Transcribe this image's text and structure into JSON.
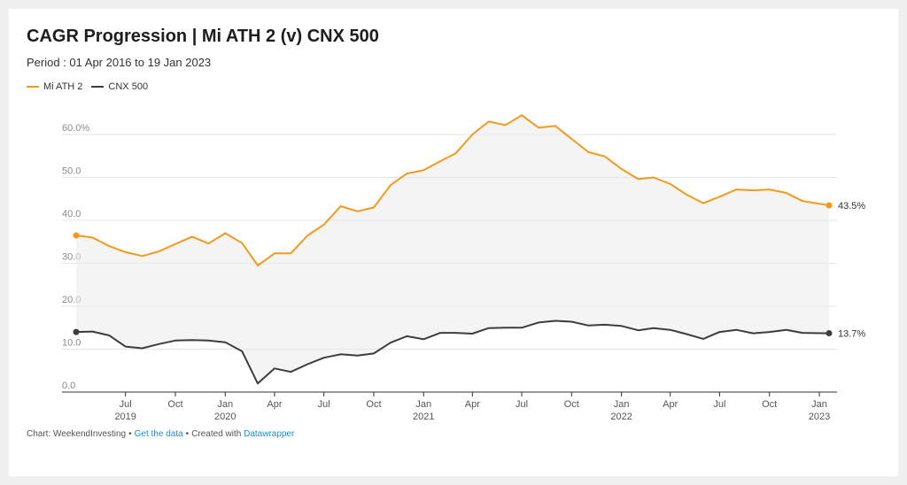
{
  "header": {
    "title": "CAGR Progression | Mi ATH 2 (v) CNX 500",
    "subtitle": "Period : 01 Apr 2016 to 19 Jan 2023"
  },
  "footer": {
    "source": "Chart: WeekendInvesting",
    "separator": "•",
    "get_data": "Get the data",
    "created_with": "Created with",
    "datawrapper": "Datawrapper"
  },
  "chart_data": {
    "type": "line",
    "title": "CAGR Progression | Mi ATH 2 (v) CNX 500",
    "subtitle": "Period : 01 Apr 2016 to 19 Jan 2023",
    "xlabel": "",
    "ylabel": "",
    "ylim": [
      0,
      60
    ],
    "grid": true,
    "legend_position": "top-left",
    "shaded_area_between_series": true,
    "y_ticks": [
      {
        "value": 0,
        "label": "0.0"
      },
      {
        "value": 10,
        "label": "10.0"
      },
      {
        "value": 20,
        "label": "20.0"
      },
      {
        "value": 30,
        "label": "30.0"
      },
      {
        "value": 40,
        "label": "40.0"
      },
      {
        "value": 50,
        "label": "50.0"
      },
      {
        "value": 60,
        "label": "60.0%"
      }
    ],
    "x_ticks": [
      {
        "x": "2019-07",
        "label": "Jul",
        "year": "2019"
      },
      {
        "x": "2019-10",
        "label": "Oct",
        "year": ""
      },
      {
        "x": "2020-01",
        "label": "Jan",
        "year": "2020"
      },
      {
        "x": "2020-04",
        "label": "Apr",
        "year": ""
      },
      {
        "x": "2020-07",
        "label": "Jul",
        "year": ""
      },
      {
        "x": "2020-10",
        "label": "Oct",
        "year": ""
      },
      {
        "x": "2021-01",
        "label": "Jan",
        "year": "2021"
      },
      {
        "x": "2021-04",
        "label": "Apr",
        "year": ""
      },
      {
        "x": "2021-07",
        "label": "Jul",
        "year": ""
      },
      {
        "x": "2021-10",
        "label": "Oct",
        "year": ""
      },
      {
        "x": "2022-01",
        "label": "Jan",
        "year": "2022"
      },
      {
        "x": "2022-04",
        "label": "Apr",
        "year": ""
      },
      {
        "x": "2022-07",
        "label": "Jul",
        "year": ""
      },
      {
        "x": "2022-10",
        "label": "Oct",
        "year": ""
      },
      {
        "x": "2023-01",
        "label": "Jan",
        "year": "2023"
      }
    ],
    "x": [
      "2019-04",
      "2019-05",
      "2019-06",
      "2019-07",
      "2019-08",
      "2019-09",
      "2019-10",
      "2019-11",
      "2019-12",
      "2020-01",
      "2020-02",
      "2020-03",
      "2020-04",
      "2020-05",
      "2020-06",
      "2020-07",
      "2020-08",
      "2020-09",
      "2020-10",
      "2020-11",
      "2020-12",
      "2021-01",
      "2021-02",
      "2021-03",
      "2021-04",
      "2021-05",
      "2021-06",
      "2021-07",
      "2021-08",
      "2021-09",
      "2021-10",
      "2021-11",
      "2021-12",
      "2022-01",
      "2022-02",
      "2022-03",
      "2022-04",
      "2022-05",
      "2022-06",
      "2022-07",
      "2022-08",
      "2022-09",
      "2022-10",
      "2022-11",
      "2022-12",
      "2023-01"
    ],
    "series": [
      {
        "name": "Mi ATH 2",
        "color": "#f39a1d",
        "end_label": "43.5%",
        "values": [
          36.5,
          36.0,
          34.0,
          32.6,
          31.7,
          32.8,
          34.5,
          36.2,
          34.6,
          37.0,
          34.7,
          29.5,
          32.3,
          32.3,
          36.5,
          39.0,
          43.3,
          42.1,
          43.0,
          48.2,
          50.9,
          51.7,
          53.8,
          55.6,
          60.0,
          63.0,
          62.2,
          64.5,
          61.6,
          62.0,
          59.0,
          55.9,
          54.9,
          52.0,
          49.6,
          50.0,
          48.5,
          46.0,
          44.0,
          45.5,
          47.2,
          47.0,
          47.2,
          46.4,
          44.5,
          43.5
        ]
      },
      {
        "name": "CNX 500",
        "color": "#3d3d3d",
        "end_label": "13.7%",
        "values": [
          14.0,
          14.1,
          13.2,
          10.6,
          10.2,
          11.2,
          12.0,
          12.1,
          12.0,
          11.6,
          9.5,
          2.0,
          5.5,
          4.7,
          6.5,
          8.0,
          8.8,
          8.5,
          9.0,
          11.5,
          13.0,
          12.3,
          13.8,
          13.8,
          13.6,
          14.9,
          15.0,
          15.0,
          16.2,
          16.6,
          16.4,
          15.5,
          15.7,
          15.4,
          14.4,
          14.9,
          14.5,
          13.5,
          12.4,
          14.0,
          14.5,
          13.7,
          14.0,
          14.5,
          13.8,
          13.7
        ]
      }
    ]
  }
}
